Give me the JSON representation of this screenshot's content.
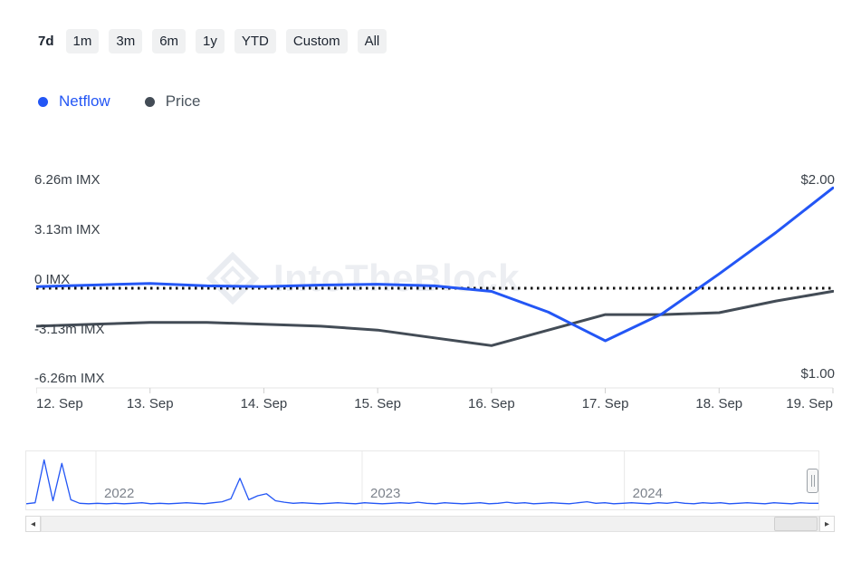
{
  "toolbar": {
    "ranges": [
      "7d",
      "1m",
      "3m",
      "6m",
      "1y",
      "YTD",
      "Custom",
      "All"
    ],
    "active_range": "7d"
  },
  "legend": {
    "netflow_label": "Netflow",
    "price_label": "Price"
  },
  "watermark_text": "IntoTheBlock",
  "colors": {
    "netflow": "#2356f5",
    "price": "#434c56",
    "zero_line": "#111111",
    "axis_text": "#3a4149",
    "button_bg": "#f0f1f2",
    "watermark": "#eceef2"
  },
  "chart_data": {
    "type": "line",
    "title": "",
    "x_ticks": [
      "12. Sep",
      "13. Sep",
      "14. Sep",
      "15. Sep",
      "16. Sep",
      "17. Sep",
      "18. Sep",
      "19. Sep"
    ],
    "y_left_ticks": [
      "6.26m IMX",
      "3.13m IMX",
      "0 IMX",
      "-3.13m IMX",
      "-6.26m IMX"
    ],
    "y_left_values": [
      6.26,
      3.13,
      0,
      -3.13,
      -6.26
    ],
    "y_right_ticks": [
      "$2.00",
      "$1.00"
    ],
    "y_left_range": [
      -6.26,
      6.26
    ],
    "y_right_range": [
      1.0,
      2.0
    ],
    "grid": false,
    "legend_position": "top-left",
    "series": [
      {
        "name": "Netflow",
        "axis": "left",
        "unit": "m IMX",
        "x": [
          12,
          12.5,
          13,
          13.5,
          14,
          14.5,
          15,
          15.5,
          16,
          16.5,
          17,
          17.5,
          18,
          18.5,
          19
        ],
        "values": [
          0.1,
          0.2,
          0.3,
          0.15,
          0.1,
          0.2,
          0.25,
          0.15,
          -0.2,
          -1.5,
          -3.3,
          -1.6,
          0.9,
          3.5,
          6.3
        ]
      },
      {
        "name": "Price",
        "axis": "right",
        "unit": "USD",
        "x": [
          12,
          12.5,
          13,
          13.5,
          14,
          14.5,
          15,
          15.5,
          16,
          16.5,
          17,
          17.5,
          18,
          18.5,
          19
        ],
        "values": [
          1.29,
          1.3,
          1.31,
          1.31,
          1.3,
          1.29,
          1.27,
          1.23,
          1.19,
          1.27,
          1.35,
          1.35,
          1.36,
          1.42,
          1.47
        ]
      }
    ],
    "zero_line_value": 0,
    "navigator": {
      "years": [
        "2022",
        "2023",
        "2024"
      ],
      "year_positions": [
        0.088,
        0.424,
        0.755
      ],
      "values": [
        0.04,
        0.06,
        0.92,
        0.1,
        0.85,
        0.12,
        0.05,
        0.04,
        0.05,
        0.04,
        0.05,
        0.04,
        0.05,
        0.06,
        0.04,
        0.05,
        0.04,
        0.05,
        0.06,
        0.05,
        0.04,
        0.06,
        0.08,
        0.14,
        0.55,
        0.12,
        0.2,
        0.24,
        0.1,
        0.07,
        0.05,
        0.06,
        0.05,
        0.04,
        0.05,
        0.06,
        0.05,
        0.04,
        0.06,
        0.05,
        0.04,
        0.05,
        0.06,
        0.05,
        0.07,
        0.05,
        0.04,
        0.06,
        0.05,
        0.04,
        0.05,
        0.06,
        0.04,
        0.05,
        0.07,
        0.05,
        0.06,
        0.04,
        0.05,
        0.06,
        0.05,
        0.04,
        0.06,
        0.08,
        0.05,
        0.06,
        0.04,
        0.05,
        0.06,
        0.05,
        0.04,
        0.06,
        0.05,
        0.07,
        0.05,
        0.04,
        0.06,
        0.05,
        0.06,
        0.04,
        0.05,
        0.06,
        0.05,
        0.04,
        0.06,
        0.05,
        0.04,
        0.06,
        0.05,
        0.05
      ]
    }
  }
}
